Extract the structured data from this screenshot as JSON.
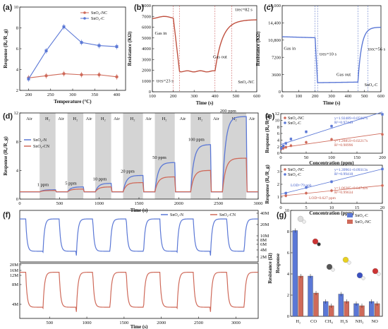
{
  "colors": {
    "blue": "#5b78d6",
    "red": "#cf6a5a",
    "gray": "#d4d4d4"
  },
  "panel_labels": {
    "a": "(a)",
    "b": "(b)",
    "c": "(c)",
    "d": "(d)",
    "e": "(e)",
    "f": "(f)",
    "g": "(g)"
  },
  "chart_data": [
    {
      "id": "a",
      "type": "line",
      "x": [
        200,
        240,
        280,
        320,
        360,
        400
      ],
      "series": [
        {
          "name": "SnO₂-NC",
          "values": [
            3.2,
            3.4,
            3.6,
            3.5,
            3.5,
            3.3
          ]
        },
        {
          "name": "SnO₂-C",
          "values": [
            3.1,
            5.8,
            8.1,
            6.6,
            6.3,
            6.2
          ]
        }
      ],
      "xlabel": "Temperature (°C)",
      "ylabel": "Response (Rₐ/R_g)",
      "xlim": [
        180,
        420
      ],
      "ylim": [
        2,
        10
      ],
      "xticks": [
        "200",
        "250",
        "300",
        "350",
        "400"
      ],
      "yticks": [
        "2",
        "4",
        "6",
        "8",
        "10"
      ]
    },
    {
      "id": "b",
      "type": "line",
      "series": [
        {
          "name": "SnO₂-NC"
        }
      ],
      "x": [
        100,
        200,
        230,
        400,
        430,
        480,
        600
      ],
      "values": [
        6900,
        6900,
        1900,
        1900,
        5500,
        6600,
        6700
      ],
      "xlabel": "Time (s)",
      "ylabel": "Resistance (KΩ)",
      "xlim": [
        100,
        600
      ],
      "ylim": [
        0,
        8000
      ],
      "xticks": [
        "100",
        "200",
        "300",
        "400",
        "500",
        "600"
      ],
      "yticks": [
        "0",
        "1000",
        "2000",
        "3000",
        "4000",
        "5000",
        "6000",
        "7000",
        "8000"
      ],
      "annotations": {
        "gas_in": "Gas in",
        "gas_out": "Gas out",
        "tres": "τres=23 s",
        "trec": "τrec=82 s"
      }
    },
    {
      "id": "c",
      "type": "line",
      "series": [
        {
          "name": "SnO₂-C"
        }
      ],
      "x": [
        0,
        200,
        215,
        450,
        470,
        520,
        600
      ],
      "values": [
        11500,
        11300,
        1900,
        2000,
        11000,
        13000,
        13500
      ],
      "xlabel": "Time (s)",
      "ylabel": "Resistance (KΩ)",
      "xlim": [
        0,
        600
      ],
      "ylim": [
        0,
        18000
      ],
      "xticks": [
        "0",
        "100",
        "200",
        "300",
        "400",
        "500",
        "600"
      ],
      "yticks": [
        "0",
        "3600",
        "7200",
        "10,800",
        "14,400",
        "18,000"
      ],
      "annotations": {
        "gas_in": "Gas in",
        "gas_out": "Gas out",
        "tres": "τres=10 s",
        "trec": "τrec=56 s"
      }
    },
    {
      "id": "d",
      "type": "line",
      "concentrations": [
        "1 ppm",
        "5 ppm",
        "10 ppm",
        "20 ppm",
        "50 ppm",
        "100 ppm",
        "200 ppm"
      ],
      "series": [
        {
          "name": "SnO₂-N",
          "values": [
            1.3,
            1.7,
            2.2,
            3.3,
            5.1,
            7.6,
            11.5
          ]
        },
        {
          "name": "SnO₂-CN",
          "values": [
            1.2,
            1.4,
            1.7,
            2.3,
            3.1,
            4.0,
            5.7
          ]
        }
      ],
      "bands": [
        "Air",
        "H₂",
        "Air",
        "H₂",
        "Air",
        "H₂",
        "Air",
        "H₂",
        "Air",
        "H₂",
        "Air",
        "H₂",
        "Air",
        "H₂",
        "Air"
      ],
      "xlabel": "Time (s)",
      "ylabel": "Response (Rₐ/R_g)",
      "xlim": [
        0,
        3000
      ],
      "ylim": [
        0,
        12
      ],
      "xticks": [
        "0",
        "500",
        "1000",
        "1500",
        "2000",
        "2500",
        "3000"
      ],
      "yticks": [
        "0",
        "4",
        "8",
        "12"
      ]
    },
    {
      "id": "e1",
      "type": "scatter",
      "x": [
        1,
        5,
        10,
        20,
        50,
        100,
        200
      ],
      "series": [
        {
          "name": "SnO₂-NC",
          "values": [
            1.3,
            1.5,
            1.8,
            2.3,
            3.3,
            4.2,
            5.7
          ]
        },
        {
          "name": "SnO₂-C",
          "values": [
            1.5,
            2.2,
            3.0,
            4.3,
            6.5,
            8.2,
            11.8
          ]
        }
      ],
      "fits": {
        "blue": "y=1.92489+0.05067x",
        "blue_r": "R²=0.97449",
        "red": "y=1.28859+0.02217x",
        "red_r": "R²=0.98996"
      },
      "xlabel": "Concentration (ppm)",
      "ylabel": "Response (Rₐ/R_g)",
      "xlim": [
        0,
        200
      ],
      "ylim": [
        0,
        12
      ],
      "xticks": [
        "0",
        "50",
        "100",
        "150",
        "200"
      ],
      "yticks": [
        "0",
        "2",
        "4",
        "6",
        "8",
        "10",
        "12"
      ]
    },
    {
      "id": "e2",
      "type": "scatter",
      "x": [
        1,
        5,
        10,
        20
      ],
      "series": [
        {
          "name": "SnO₂-NC",
          "values": [
            1.1,
            1.3,
            1.5,
            1.9
          ]
        },
        {
          "name": "SnO₂-C",
          "values": [
            1.3,
            1.75,
            2.2,
            3.2
          ]
        }
      ],
      "fits": {
        "blue": "y=1.39961+0.09313x",
        "blue_r": "R²=0.99418",
        "red": "y=1.06385+0.04742x",
        "red_r": "R²=0.99634"
      },
      "lod": {
        "blue": "LOD=79 ppb",
        "red": "LOD=0.627 ppm"
      },
      "xlabel": "Concentration (ppm)",
      "ylabel": "Response (Rₐ/R_g)",
      "xlim": [
        0,
        20
      ],
      "ylim": [
        0.5,
        3.5
      ],
      "xticks": [
        "0",
        "5",
        "10",
        "15",
        "20"
      ],
      "yticks": [
        "1",
        "2",
        "3"
      ]
    },
    {
      "id": "f",
      "type": "line",
      "series": [
        {
          "name": "SnO₂-N"
        },
        {
          "name": "SnO₂-CN"
        }
      ],
      "xlabel": "Time (s)",
      "ylabel": "Resistance (Ω)",
      "xticks": [
        "500",
        "1000",
        "1500",
        "2000",
        "2500",
        "3000"
      ],
      "yticks_top": [
        "2M",
        "4M",
        "6M",
        "8M",
        "10M",
        "20M",
        "40M"
      ],
      "yticks_bottom": [
        "4M",
        "8M",
        "12M",
        "16M",
        "20M"
      ]
    },
    {
      "id": "g",
      "type": "bar",
      "categories": [
        "H₂",
        "CO",
        "CH₄",
        "H₂S",
        "NH₃",
        "NO"
      ],
      "series": [
        {
          "name": "SnO₂-C",
          "values": [
            8.1,
            3.8,
            1.4,
            2.1,
            1.2,
            1.4
          ]
        },
        {
          "name": "SnO₂-NC",
          "values": [
            3.8,
            2.2,
            1.0,
            1.4,
            1.0,
            1.2
          ]
        }
      ],
      "ylabel": "Response",
      "ylim": [
        0,
        10
      ],
      "yticks": [
        "0",
        "2",
        "4",
        "6",
        "8",
        "10"
      ]
    }
  ]
}
